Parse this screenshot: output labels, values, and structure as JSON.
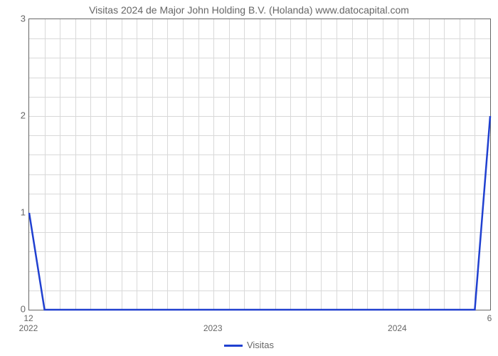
{
  "chart": {
    "type": "line",
    "title": "Visitas 2024 de Major John Holding B.V. (Holanda) www.datocapital.com",
    "title_fontsize": 14,
    "title_color": "#666666",
    "background_color": "#ffffff",
    "plot_border_color": "#666666",
    "grid_color": "#d9d9d9",
    "ylim": [
      0,
      3
    ],
    "yticks": [
      0,
      1,
      2,
      3
    ],
    "y_minor_gridlines_per_major": 4,
    "x_range": [
      0,
      30
    ],
    "x_major_ticks": [
      {
        "pos": 0,
        "top_label": "12",
        "bottom_label": "2022"
      },
      {
        "pos": 12,
        "top_label": "",
        "bottom_label": "2023"
      },
      {
        "pos": 24,
        "top_label": "",
        "bottom_label": "2024"
      },
      {
        "pos": 30,
        "top_label": "6",
        "bottom_label": ""
      }
    ],
    "x_minor_step": 1,
    "series": {
      "label": "Visitas",
      "color": "#2040d0",
      "line_width": 2.5,
      "x": [
        0,
        1,
        2,
        3,
        4,
        5,
        6,
        7,
        8,
        9,
        10,
        11,
        12,
        13,
        14,
        15,
        16,
        17,
        18,
        19,
        20,
        21,
        22,
        23,
        24,
        25,
        26,
        27,
        28,
        29,
        30
      ],
      "y": [
        1,
        0,
        0,
        0,
        0,
        0,
        0,
        0,
        0,
        0,
        0,
        0,
        0,
        0,
        0,
        0,
        0,
        0,
        0,
        0,
        0,
        0,
        0,
        0,
        0,
        0,
        0,
        0,
        0,
        0,
        2
      ]
    },
    "axis_label_fontsize": 13,
    "axis_label_color": "#666666",
    "legend_position": "bottom-center"
  }
}
